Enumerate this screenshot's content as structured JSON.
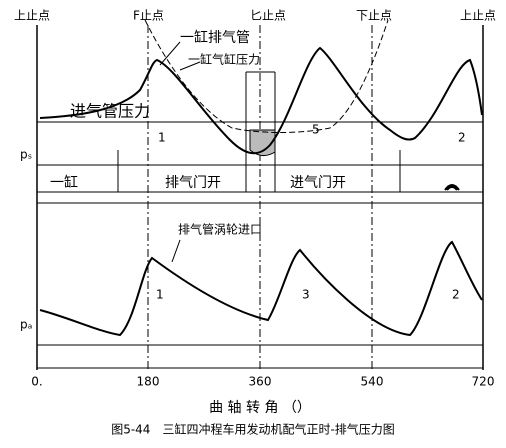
{
  "figure": {
    "top_labels": [
      "上止点",
      "F止点",
      "匕止点",
      "下止点",
      "上止点"
    ],
    "upper": {
      "exhaust_label": "一缸排气管",
      "cylinder_label": "一缸气缸压力",
      "intake_label": "进气管压力",
      "peak_1": "1",
      "peak_2": "2",
      "curve_5": "5",
      "p_label": "pₛ"
    },
    "bands": {
      "cylinder": "一缸",
      "exhaust_open": "排气门开",
      "intake_open": "进气门开"
    },
    "lower": {
      "label": "排气管涡轮进口",
      "peak_1": "1",
      "peak_3": "3",
      "peak_2": "2",
      "p_label": "pₐ"
    },
    "x_labels": [
      "0.",
      "180",
      "360",
      "540",
      "720"
    ],
    "axis_title": "曲 轴 转 角 （）",
    "caption": "图5-44　三缸四冲程车用发动机配气正时-排气压力图"
  }
}
